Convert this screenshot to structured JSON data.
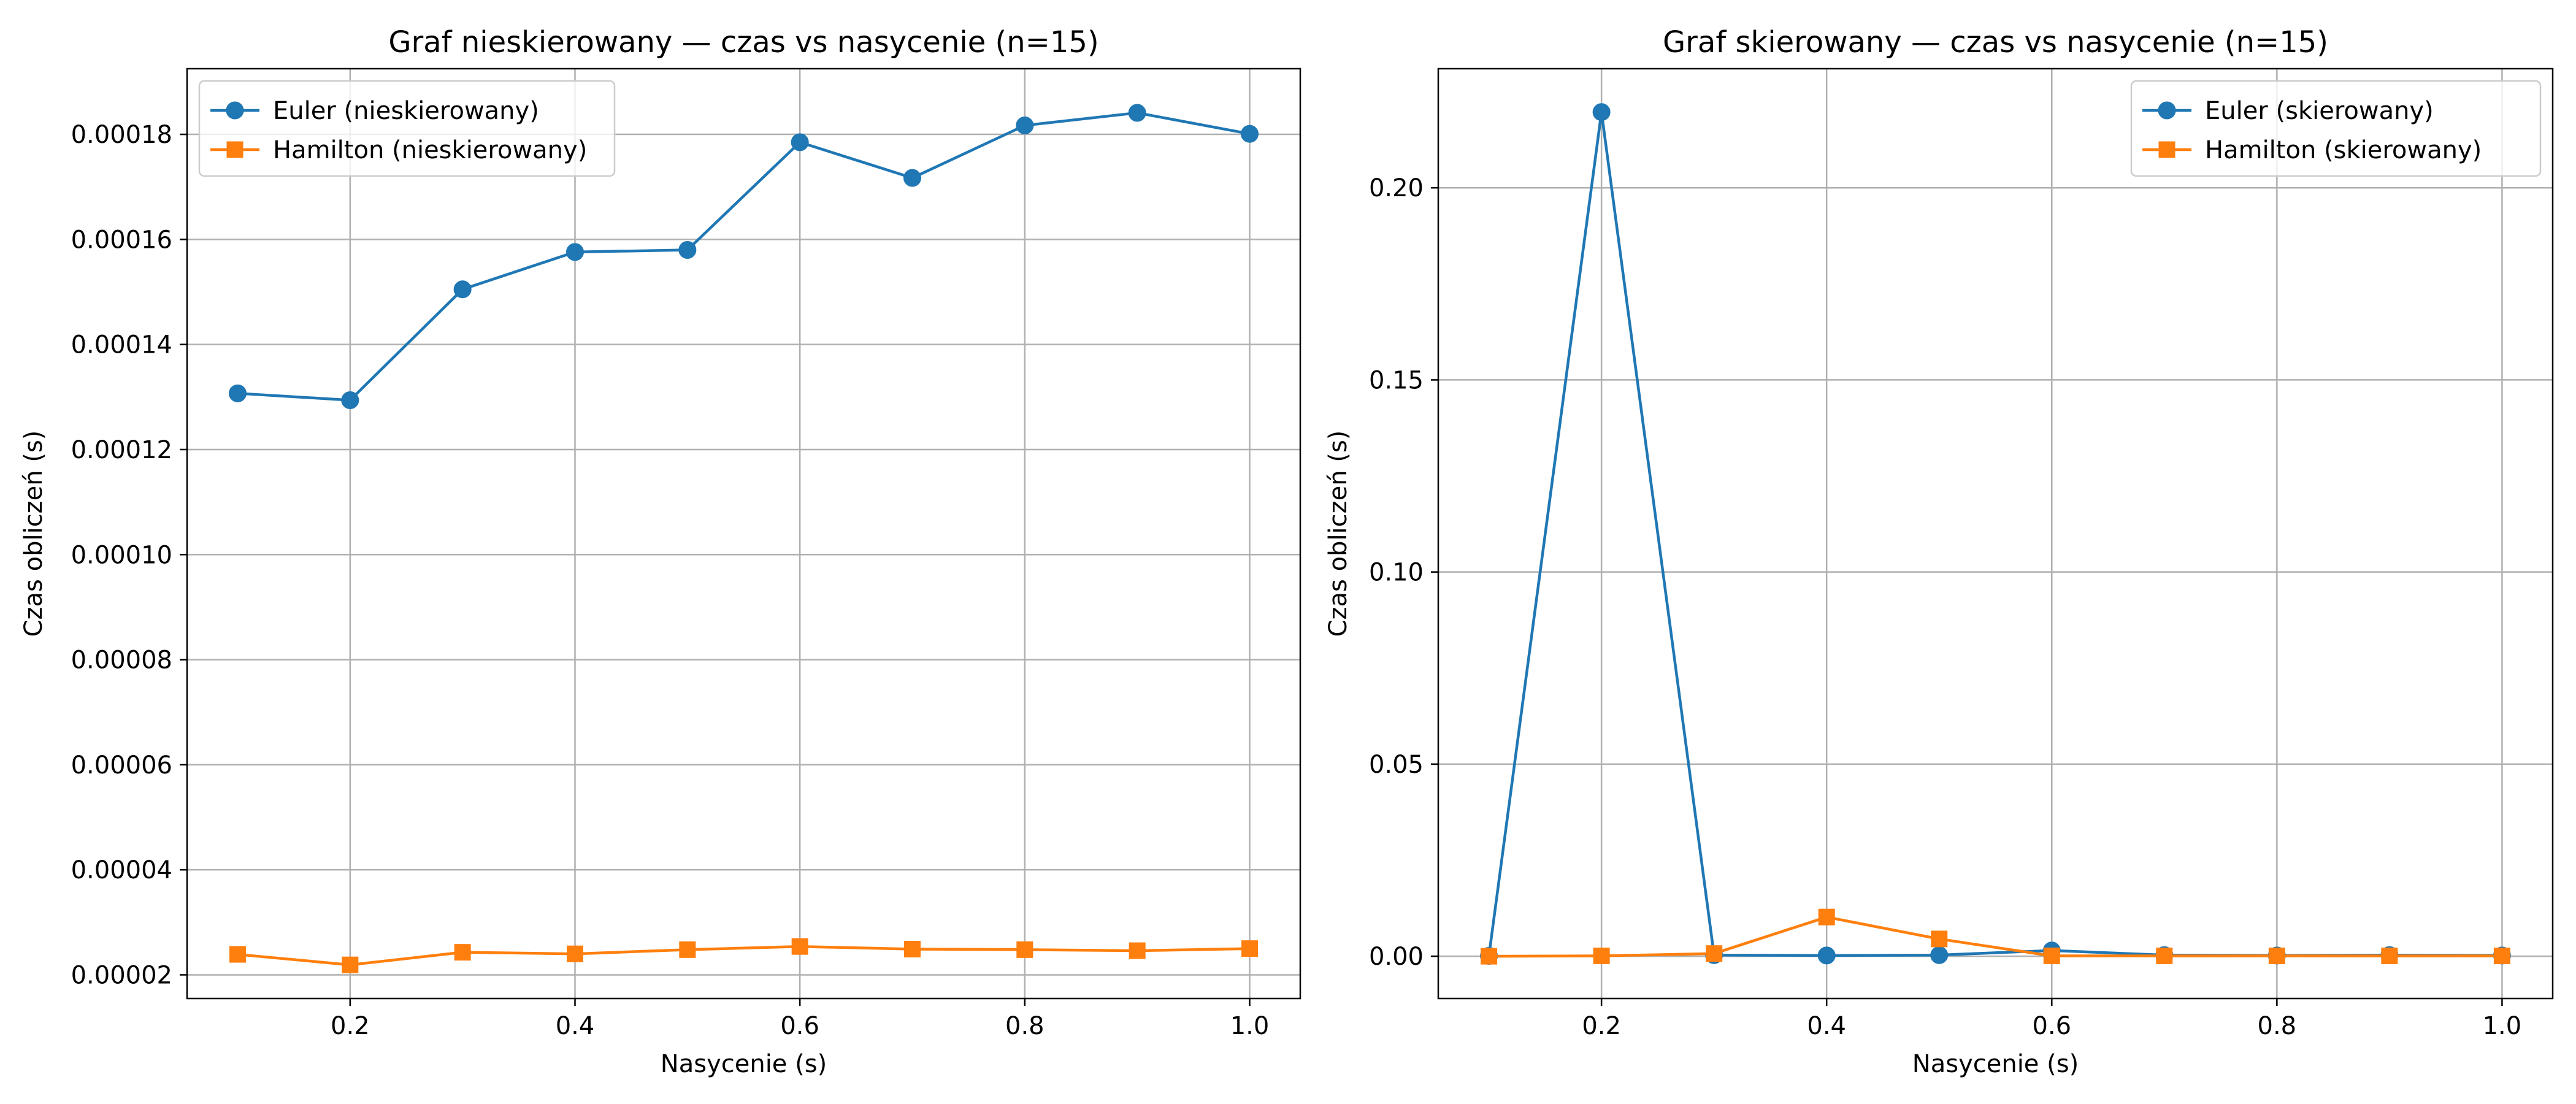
{
  "chart_data": [
    {
      "type": "line",
      "title": "Graf nieskierowany — czas vs nasycenie (n=15)",
      "xlabel": "Nasycenie (s)",
      "ylabel": "Czas obliczeń (s)",
      "x": [
        0.1,
        0.2,
        0.3,
        0.4,
        0.5,
        0.6,
        0.7,
        0.8,
        0.9,
        1.0
      ],
      "xlim": [
        0.055,
        1.045
      ],
      "ylim": [
        1.55e-05,
        0.0001925
      ],
      "xticks": [
        0.2,
        0.4,
        0.6,
        0.8,
        1.0
      ],
      "xtick_labels": [
        "0.2",
        "0.4",
        "0.6",
        "0.8",
        "1.0"
      ],
      "yticks": [
        2e-05,
        4e-05,
        6e-05,
        8e-05,
        0.0001,
        0.00012,
        0.00014,
        0.00016,
        0.00018
      ],
      "ytick_labels": [
        "0.00002",
        "0.00004",
        "0.00006",
        "0.00008",
        "0.00010",
        "0.00012",
        "0.00014",
        "0.00016",
        "0.00018"
      ],
      "grid": true,
      "legend_position": "top-left",
      "series": [
        {
          "name": "Euler (nieskierowany)",
          "color": "#1f77b4",
          "marker": "circle",
          "values": [
            0.0001307,
            0.0001294,
            0.0001505,
            0.0001576,
            0.000158,
            0.0001785,
            0.0001717,
            0.0001817,
            0.0001841,
            0.0001801
          ]
        },
        {
          "name": "Hamilton (nieskierowany)",
          "color": "#ff7f0e",
          "marker": "square",
          "values": [
            2.39e-05,
            2.19e-05,
            2.43e-05,
            2.4e-05,
            2.48e-05,
            2.54e-05,
            2.49e-05,
            2.48e-05,
            2.46e-05,
            2.5e-05
          ]
        }
      ]
    },
    {
      "type": "line",
      "title": "Graf skierowany — czas vs nasycenie (n=15)",
      "xlabel": "Nasycenie (s)",
      "ylabel": "Czas obliczeń (s)",
      "x": [
        0.1,
        0.2,
        0.3,
        0.4,
        0.5,
        0.6,
        0.7,
        0.8,
        0.9,
        1.0
      ],
      "xlim": [
        0.055,
        1.045
      ],
      "ylim": [
        -0.011,
        0.231
      ],
      "xticks": [
        0.2,
        0.4,
        0.6,
        0.8,
        1.0
      ],
      "xtick_labels": [
        "0.2",
        "0.4",
        "0.6",
        "0.8",
        "1.0"
      ],
      "yticks": [
        0.0,
        0.05,
        0.1,
        0.15,
        0.2
      ],
      "ytick_labels": [
        "0.00",
        "0.05",
        "0.10",
        "0.15",
        "0.20"
      ],
      "grid": true,
      "legend_position": "top-right",
      "series": [
        {
          "name": "Euler (skierowany)",
          "color": "#1f77b4",
          "marker": "circle",
          "values": [
            0.0001,
            0.2197,
            0.0003,
            0.0002,
            0.0003,
            0.0015,
            0.0003,
            0.0002,
            0.0003,
            0.0002
          ]
        },
        {
          "name": "Hamilton (skierowany)",
          "color": "#ff7f0e",
          "marker": "square",
          "values": [
            0.0,
            0.0001,
            0.0007,
            0.0102,
            0.0045,
            0.0001,
            0.0001,
            0.0001,
            0.0001,
            0.0001
          ]
        }
      ]
    }
  ]
}
